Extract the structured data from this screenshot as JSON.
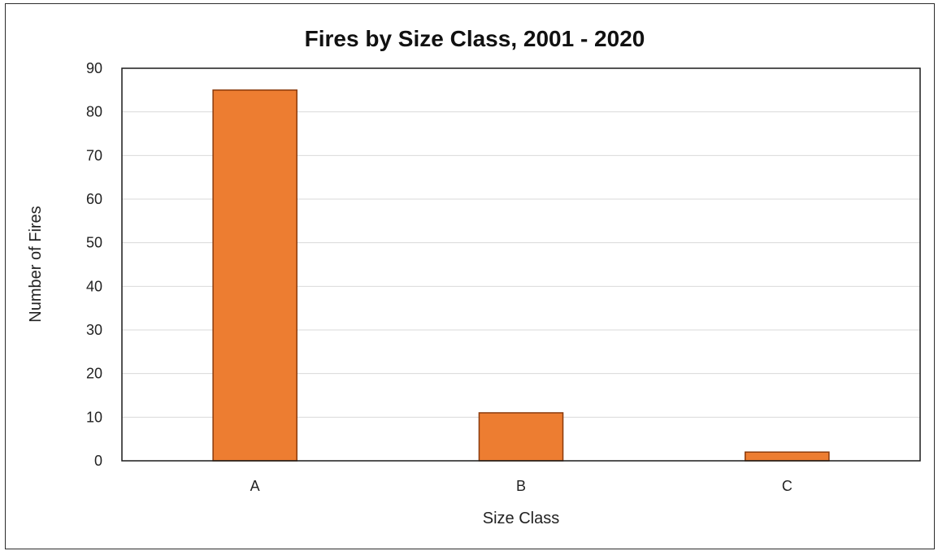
{
  "chart_data": {
    "type": "bar",
    "title": "Fires by Size Class, 2001 - 2020",
    "xlabel": "Size Class",
    "ylabel": "Number of Fires",
    "categories": [
      "A",
      "B",
      "C"
    ],
    "values": [
      85,
      11,
      2
    ],
    "ylim": [
      0,
      90
    ],
    "yticks": [
      0,
      10,
      20,
      30,
      40,
      50,
      60,
      70,
      80,
      90
    ],
    "grid": true,
    "legend": "none",
    "colors": {
      "bar_fill": "#ed7d31",
      "bar_stroke": "#8a3a0c",
      "gridline": "#d9d9d9",
      "plot_border": "#1a1a1a"
    }
  }
}
